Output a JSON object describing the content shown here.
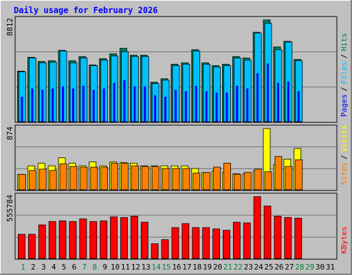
{
  "chart_data": {
    "type": "bar",
    "title": "Daily usage for February 2026",
    "legend_separator": "/",
    "categories": [
      "1",
      "2",
      "3",
      "4",
      "5",
      "6",
      "7",
      "8",
      "9",
      "10",
      "11",
      "12",
      "13",
      "14",
      "15",
      "16",
      "17",
      "18",
      "19",
      "20",
      "21",
      "22",
      "23",
      "24",
      "25",
      "26",
      "27",
      "28",
      "29",
      "30",
      "31"
    ],
    "category_colors": [
      "#008040",
      "#000000",
      "#000000",
      "#000000",
      "#000000",
      "#000000",
      "#008040",
      "#008040",
      "#000000",
      "#000000",
      "#000000",
      "#000000",
      "#000000",
      "#008040",
      "#008040",
      "#000000",
      "#000000",
      "#000000",
      "#000000",
      "#000000",
      "#008040",
      "#008040",
      "#000000",
      "#000000",
      "#000000",
      "#000000",
      "#000000",
      "#008040",
      "#008040",
      "#000000",
      "#000000"
    ],
    "panels": [
      {
        "ylim": [
          0,
          8812
        ],
        "yticks": [
          8812
        ],
        "series": [
          {
            "name": "Hits",
            "color": "#00805c",
            "values": [
              4380,
              5580,
              5220,
              5280,
              6180,
              5280,
              5640,
              4920,
              5460,
              5880,
              6360,
              5760,
              5760,
              3420,
              3720,
              4980,
              5100,
              6240,
              5100,
              4860,
              4980,
              5640,
              5520,
              7740,
              8812,
              6480,
              6960,
              5400,
              null,
              null,
              null
            ]
          },
          {
            "name": "Files",
            "color": "#00c0ff",
            "values": [
              4320,
              5520,
              5100,
              5160,
              6120,
              5100,
              5520,
              4860,
              5340,
              5700,
              6060,
              5640,
              5640,
              3300,
              3600,
              4860,
              4980,
              6120,
              4980,
              4740,
              4860,
              5520,
              5340,
              7680,
              8520,
              6240,
              6900,
              5280,
              null,
              null,
              null
            ]
          },
          {
            "name": "Pages",
            "color": "#0000ff",
            "values": [
              2160,
              2880,
              2760,
              2880,
              3060,
              2880,
              3120,
              2760,
              2880,
              3360,
              3600,
              3060,
              3060,
              2280,
              2160,
              2760,
              2640,
              3120,
              2640,
              2520,
              2520,
              3120,
              2880,
              4200,
              5040,
              3360,
              3480,
              2640,
              null,
              null,
              null
            ]
          }
        ]
      },
      {
        "ylim": [
          0,
          874
        ],
        "yticks": [
          874
        ],
        "series": [
          {
            "name": "Visits",
            "color": "#ffff00",
            "values": [
              219,
              342,
              380,
              342,
              456,
              380,
              342,
              399,
              342,
              399,
              390,
              380,
              342,
              342,
              342,
              342,
              342,
              304,
              247,
              266,
              247,
              228,
              228,
              266,
              874,
              361,
              437,
              589,
              null,
              null,
              null
            ]
          },
          {
            "name": "Sites",
            "color": "#ff8000",
            "values": [
              219,
              276,
              295,
              276,
              371,
              333,
              323,
              323,
              323,
              380,
              380,
              342,
              333,
              333,
              304,
              304,
              304,
              238,
              247,
              323,
              380,
              219,
              247,
              295,
              257,
              475,
              333,
              428,
              null,
              null,
              null
            ]
          }
        ]
      },
      {
        "ylim": [
          0,
          555784
        ],
        "yticks": [
          555784
        ],
        "series": [
          {
            "name": "KBytes",
            "color": "#ff0000",
            "values": [
              217476,
              217476,
              302050,
              332255,
              338296,
              332255,
              356419,
              332255,
              338296,
              374542,
              368501,
              380583,
              326214,
              132902,
              169148,
              277886,
              314132,
              277886,
              277886,
              265804,
              253722,
              326214,
              320173,
              555784,
              471198,
              380583,
              368501,
              362460,
              null,
              null,
              null
            ]
          }
        ]
      }
    ]
  }
}
